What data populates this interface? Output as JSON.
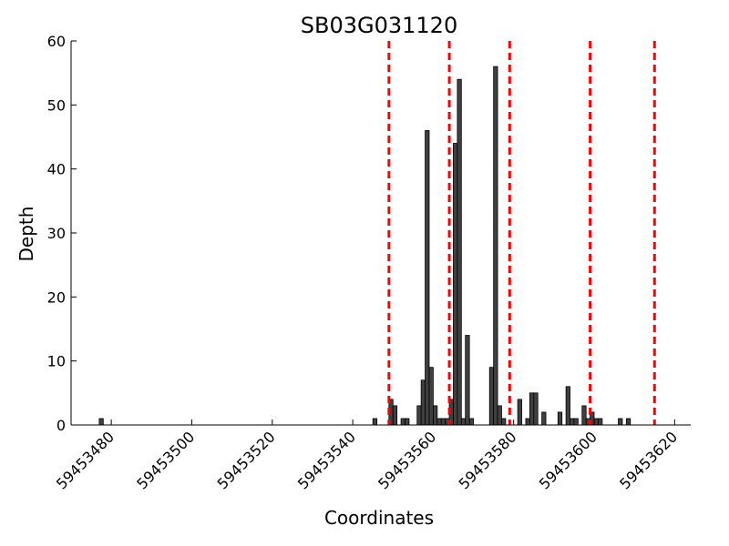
{
  "chart_data": {
    "type": "bar",
    "title": "SB03G031120",
    "xlabel": "Coordinates",
    "ylabel": "Depth",
    "xlim": [
      59453470,
      59453624
    ],
    "ylim": [
      0,
      60
    ],
    "xticks": [
      59453480,
      59453500,
      59453520,
      59453540,
      59453560,
      59453580,
      59453600,
      59453620
    ],
    "yticks": [
      0,
      10,
      20,
      30,
      40,
      50,
      60
    ],
    "grid": false,
    "bar_color": "#404040",
    "marker_color": "#ff0000",
    "series": [
      {
        "x": [
          59453477,
          59453545,
          59453549,
          59453550,
          59453552,
          59453553,
          59453556,
          59453557,
          59453558,
          59453559,
          59453560,
          59453561,
          59453562,
          59453563,
          59453564,
          59453565,
          59453566,
          59453567,
          59453568,
          59453569,
          59453574,
          59453575,
          59453576,
          59453577,
          59453581,
          59453583,
          59453584,
          59453585,
          59453587,
          59453591,
          59453593,
          59453594,
          59453595,
          59453597,
          59453598,
          59453599,
          59453600,
          59453601,
          59453606,
          59453608
        ],
        "values": [
          1,
          1,
          4,
          3,
          1,
          1,
          3,
          7,
          46,
          9,
          3,
          1,
          1,
          1,
          4,
          44,
          54,
          1,
          14,
          1,
          9,
          56,
          3,
          1,
          4,
          1,
          5,
          5,
          2,
          2,
          6,
          1,
          1,
          3,
          1,
          2,
          1,
          1,
          1,
          1
        ]
      }
    ],
    "markers": [
      59453549,
      59453564,
      59453579,
      59453599,
      59453615
    ]
  }
}
